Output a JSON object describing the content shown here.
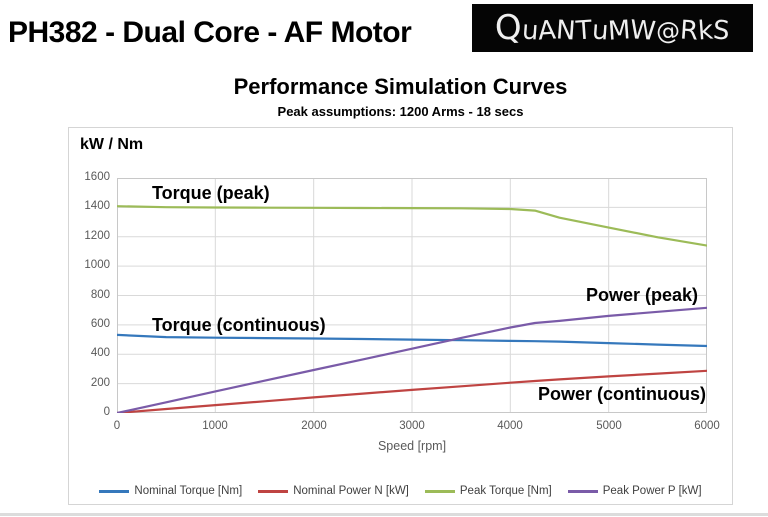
{
  "header": {
    "title": "PH382 - Dual Core - AF Motor",
    "logo_text": "QuANTuMW@RkS"
  },
  "chart": {
    "title": "Performance Simulation Curves",
    "subtitle": "Peak assumptions: 1200 Arms - 18 secs",
    "y_axis_title": "kW / Nm",
    "x_axis_label": "Speed [rpm]"
  },
  "annotations": {
    "torque_peak": "Torque (peak)",
    "torque_continuous": "Torque (continuous)",
    "power_peak": "Power (peak)",
    "power_continuous": "Power (continuous)"
  },
  "legend": {
    "items": [
      {
        "label": "Nominal Torque [Nm]",
        "color": "#3578bc"
      },
      {
        "label": "Nominal Power N [kW]",
        "color": "#bf4442"
      },
      {
        "label": "Peak Torque [Nm]",
        "color": "#9cbb58"
      },
      {
        "label": "Peak Power P [kW]",
        "color": "#7a5ba8"
      }
    ]
  },
  "colors": {
    "nominal_torque": "#3578bc",
    "nominal_power": "#bf4442",
    "peak_torque": "#9cbb58",
    "peak_power": "#7a5ba8",
    "gridline": "#d9d9d9",
    "plot_border": "#c8c8c8",
    "tick_text": "#595959",
    "logo_bg": "#050505"
  },
  "chart_data": {
    "type": "line",
    "title": "Performance Simulation Curves",
    "subtitle": "Peak assumptions: 1200 Arms - 18 secs",
    "xlabel": "Speed [rpm]",
    "ylabel": "kW / Nm",
    "xlim": [
      0,
      6000
    ],
    "ylim": [
      0,
      1600
    ],
    "x_ticks": [
      0,
      1000,
      2000,
      3000,
      4000,
      5000,
      6000
    ],
    "y_ticks": [
      0,
      200,
      400,
      600,
      800,
      1000,
      1200,
      1400,
      1600
    ],
    "grid": true,
    "legend_position": "bottom",
    "x": [
      0,
      500,
      1000,
      1500,
      2000,
      2500,
      3000,
      3500,
      4000,
      4250,
      4500,
      5000,
      5500,
      6000
    ],
    "series": [
      {
        "name": "Nominal Torque [Nm]",
        "color": "#3578bc",
        "values": [
          532,
          517,
          513,
          510,
          507,
          504,
          500,
          496,
          491,
          489,
          486,
          476,
          466,
          456
        ]
      },
      {
        "name": "Nominal Power N [kW]",
        "color": "#bf4442",
        "values": [
          0,
          27,
          54,
          80,
          106,
          132,
          157,
          182,
          206,
          218,
          229,
          249,
          268,
          287
        ]
      },
      {
        "name": "Peak Torque [Nm]",
        "color": "#9cbb58",
        "values": [
          1408,
          1401,
          1399,
          1398,
          1397,
          1396,
          1395,
          1394,
          1389,
          1378,
          1330,
          1262,
          1196,
          1140
        ]
      },
      {
        "name": "Peak Power P [kW]",
        "color": "#7a5ba8",
        "values": [
          0,
          73,
          147,
          220,
          293,
          365,
          438,
          511,
          582,
          613,
          627,
          661,
          689,
          716
        ]
      }
    ]
  }
}
